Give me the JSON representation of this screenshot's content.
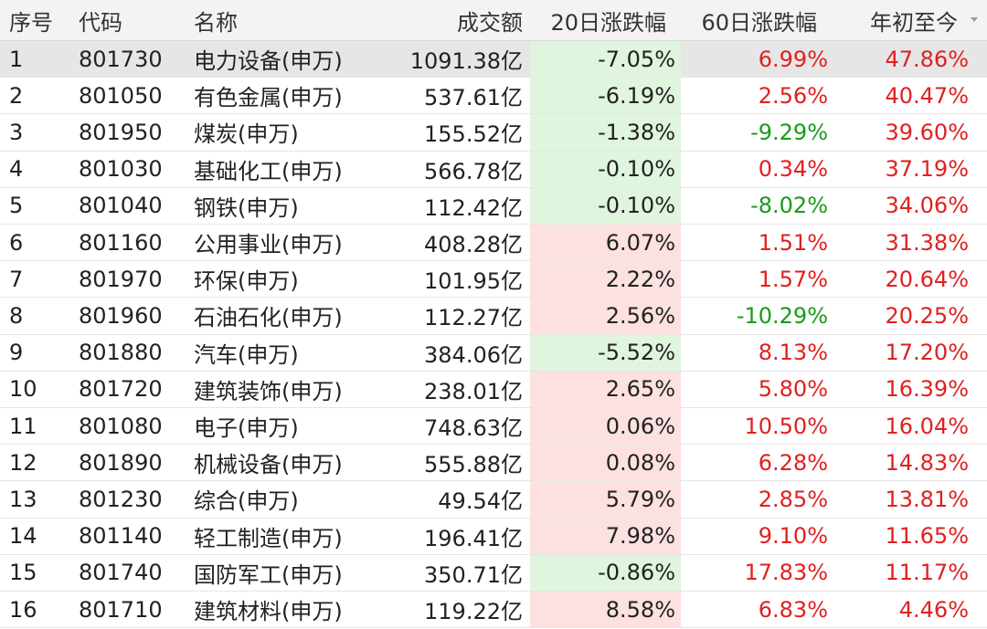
{
  "headers": {
    "seq": "序号",
    "code": "代码",
    "name": "名称",
    "amount": "成交额",
    "d20": "20日涨跌幅",
    "d60": "60日涨跌幅",
    "ytd": "年初至今"
  },
  "colors": {
    "up_text": "#e02020",
    "down_text": "#1a9a1a",
    "up_bg": "#fde0e0",
    "down_bg": "#dff5dd",
    "selected_row": "#e6e6e6"
  },
  "rows": [
    {
      "seq": "1",
      "code": "801730",
      "name": "电力设备(申万)",
      "amount": "1091.38亿",
      "d20": "-7.05%",
      "d60": "6.99%",
      "ytd": "47.86%"
    },
    {
      "seq": "2",
      "code": "801050",
      "name": "有色金属(申万)",
      "amount": "537.61亿",
      "d20": "-6.19%",
      "d60": "2.56%",
      "ytd": "40.47%"
    },
    {
      "seq": "3",
      "code": "801950",
      "name": "煤炭(申万)",
      "amount": "155.52亿",
      "d20": "-1.38%",
      "d60": "-9.29%",
      "ytd": "39.60%"
    },
    {
      "seq": "4",
      "code": "801030",
      "name": "基础化工(申万)",
      "amount": "566.78亿",
      "d20": "-0.10%",
      "d60": "0.34%",
      "ytd": "37.19%"
    },
    {
      "seq": "5",
      "code": "801040",
      "name": "钢铁(申万)",
      "amount": "112.42亿",
      "d20": "-0.10%",
      "d60": "-8.02%",
      "ytd": "34.06%"
    },
    {
      "seq": "6",
      "code": "801160",
      "name": "公用事业(申万)",
      "amount": "408.28亿",
      "d20": "6.07%",
      "d60": "1.51%",
      "ytd": "31.38%"
    },
    {
      "seq": "7",
      "code": "801970",
      "name": "环保(申万)",
      "amount": "101.95亿",
      "d20": "2.22%",
      "d60": "1.57%",
      "ytd": "20.64%"
    },
    {
      "seq": "8",
      "code": "801960",
      "name": "石油石化(申万)",
      "amount": "112.27亿",
      "d20": "2.56%",
      "d60": "-10.29%",
      "ytd": "20.25%"
    },
    {
      "seq": "9",
      "code": "801880",
      "name": "汽车(申万)",
      "amount": "384.06亿",
      "d20": "-5.52%",
      "d60": "8.13%",
      "ytd": "17.20%"
    },
    {
      "seq": "10",
      "code": "801720",
      "name": "建筑装饰(申万)",
      "amount": "238.01亿",
      "d20": "2.65%",
      "d60": "5.80%",
      "ytd": "16.39%"
    },
    {
      "seq": "11",
      "code": "801080",
      "name": "电子(申万)",
      "amount": "748.63亿",
      "d20": "0.06%",
      "d60": "10.50%",
      "ytd": "16.04%"
    },
    {
      "seq": "12",
      "code": "801890",
      "name": "机械设备(申万)",
      "amount": "555.88亿",
      "d20": "0.08%",
      "d60": "6.28%",
      "ytd": "14.83%"
    },
    {
      "seq": "13",
      "code": "801230",
      "name": "综合(申万)",
      "amount": "49.54亿",
      "d20": "5.79%",
      "d60": "2.85%",
      "ytd": "13.81%"
    },
    {
      "seq": "14",
      "code": "801140",
      "name": "轻工制造(申万)",
      "amount": "196.41亿",
      "d20": "7.98%",
      "d60": "9.10%",
      "ytd": "11.65%"
    },
    {
      "seq": "15",
      "code": "801740",
      "name": "国防军工(申万)",
      "amount": "350.71亿",
      "d20": "-0.86%",
      "d60": "17.83%",
      "ytd": "11.17%"
    },
    {
      "seq": "16",
      "code": "801710",
      "name": "建筑材料(申万)",
      "amount": "119.22亿",
      "d20": "8.58%",
      "d60": "6.83%",
      "ytd": "4.46%"
    }
  ],
  "selected_row": 1,
  "sort": {
    "column": "ytd",
    "direction": "desc",
    "icon": "sort-desc-icon"
  }
}
